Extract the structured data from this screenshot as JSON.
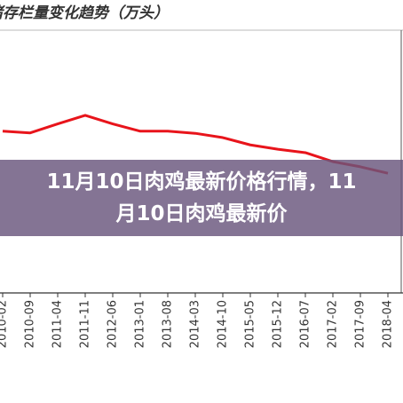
{
  "chart_data": {
    "type": "line",
    "title": "猪存栏量变化趋势（万头）",
    "categories": [
      "2010-02",
      "2010-09",
      "2011-04",
      "2011-11",
      "2012-06",
      "2013-01",
      "2013-08",
      "2014-03",
      "2014-10",
      "2015-05",
      "2015-12",
      "2016-07",
      "2017-02",
      "2017-09",
      "2018-04"
    ],
    "series": [
      {
        "color": "#e8141b",
        "values": [
          3770,
          3730,
          3940,
          4140,
          3940,
          3770,
          3770,
          3720,
          3620,
          3450,
          3350,
          3270,
          3060,
          2940,
          2790
        ]
      }
    ],
    "ylim": [
      0,
      6000
    ]
  },
  "overlay_title": "11月10日肉鸡最新价格行情，11月10日肉鸡最新价"
}
